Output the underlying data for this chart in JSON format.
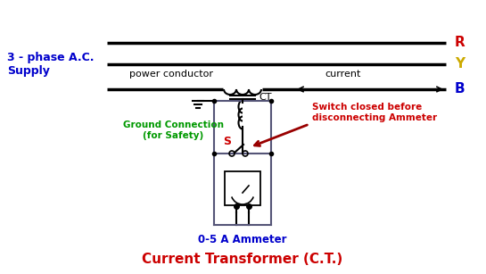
{
  "title": "Current Transformer (C.T.)",
  "title_color": "#cc0000",
  "title_fontsize": 11,
  "supply_label": "3 - phase A.C.\nSupply",
  "supply_color": "#0000cc",
  "phase_R": "R",
  "phase_Y": "Y",
  "phase_B": "B",
  "phase_R_color": "#cc0000",
  "phase_Y_color": "#ccaa00",
  "phase_B_color": "#0000cc",
  "power_conductor_label": "power conductor",
  "current_label": "current",
  "ground_label": "Ground Connection\n(for Safety)",
  "ground_color": "#009900",
  "ct_label": "CT",
  "switch_label": "S",
  "switch_note": "Switch closed before\ndisconnecting Ammeter",
  "switch_note_color": "#cc0000",
  "ammeter_label": "0-5 A Ammeter",
  "ammeter_color": "#0000cc",
  "bg_color": "#ffffff",
  "line_color": "#000000",
  "box_color": "#555577"
}
